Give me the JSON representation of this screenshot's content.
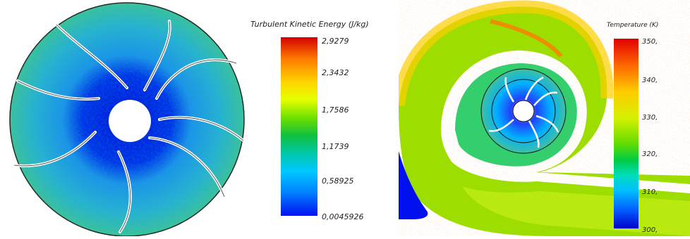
{
  "left_figure": {
    "colorbar": {
      "title": "Turbulent Kinetic Energy (J/kg)",
      "labels": [
        "2,9279",
        "2,3432",
        "1,7586",
        "1,1739",
        "0,58925",
        "0,0045926"
      ],
      "colors": [
        "#d40000",
        "#ff7a00",
        "#ffd400",
        "#e6ff00",
        "#6fe000",
        "#10c040",
        "#00c8a8",
        "#00c8ff",
        "#0080ff",
        "#0010f0"
      ]
    }
  },
  "right_figure": {
    "colorbar": {
      "title": "Temperature (K)",
      "labels": [
        "350,",
        "340,",
        "330,",
        "320,",
        "310,",
        "300,"
      ],
      "colors": [
        "#e00000",
        "#ff6600",
        "#ffcc00",
        "#d4f000",
        "#66dd00",
        "#00cc44",
        "#00ddbb",
        "#00c0ff",
        "#0060ff",
        "#0000cc"
      ]
    }
  }
}
